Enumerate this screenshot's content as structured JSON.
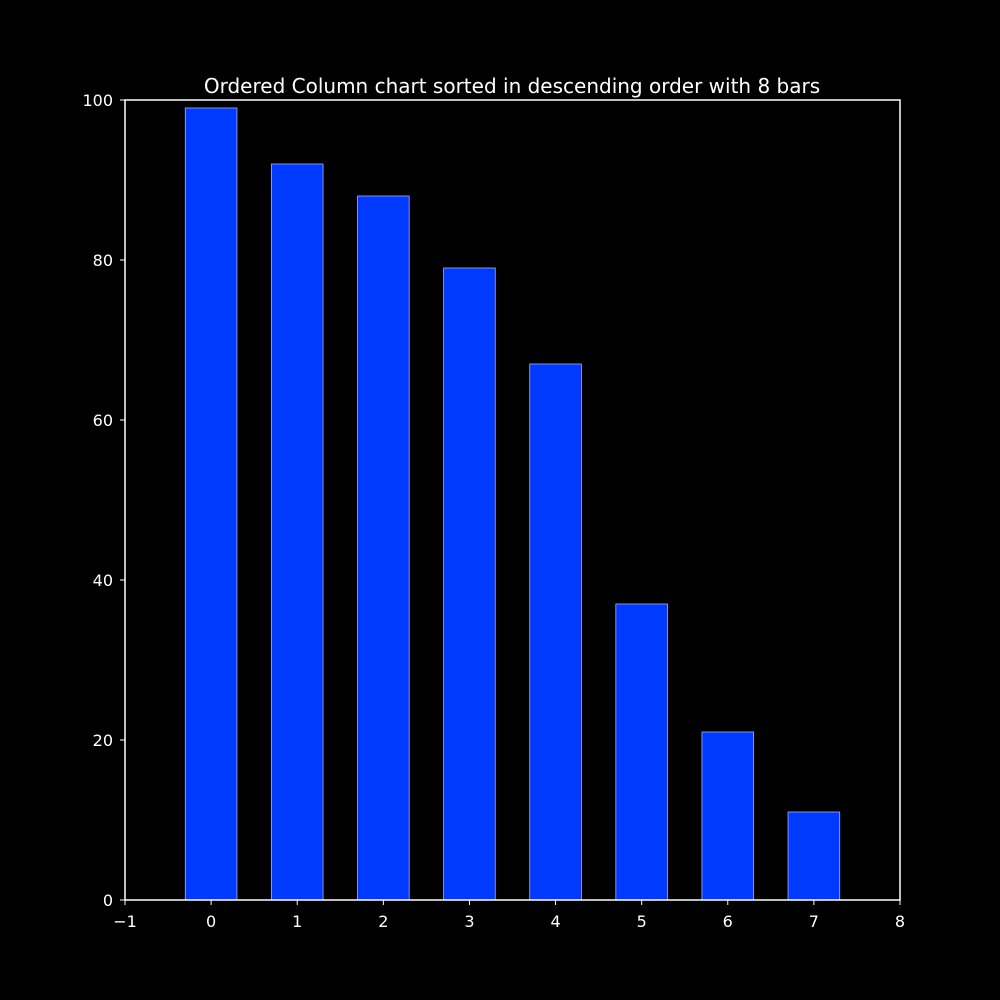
{
  "chart_data": {
    "type": "bar",
    "title": "Ordered Column chart sorted in descending order with 8 bars",
    "xlabel": "",
    "ylabel": "",
    "categories": [
      "0",
      "1",
      "2",
      "3",
      "4",
      "5",
      "6",
      "7"
    ],
    "x": [
      0,
      1,
      2,
      3,
      4,
      5,
      6,
      7
    ],
    "values": [
      99,
      92,
      88,
      79,
      67,
      37,
      21,
      11
    ],
    "bar_width": 0.6,
    "xlim": [
      -1,
      8
    ],
    "ylim": [
      0,
      100
    ],
    "x_ticks": [
      -1,
      0,
      1,
      2,
      3,
      4,
      5,
      6,
      7,
      8
    ],
    "x_tick_labels": [
      "−1",
      "0",
      "1",
      "2",
      "3",
      "4",
      "5",
      "6",
      "7",
      "8"
    ],
    "y_ticks": [
      0,
      20,
      40,
      60,
      80,
      100
    ],
    "y_tick_labels": [
      "0",
      "20",
      "40",
      "60",
      "80",
      "100"
    ],
    "grid": false,
    "legend": "none",
    "colors": {
      "background": "#000000",
      "bar_fill": "#0039ff",
      "bar_edge": "#a0b0ff",
      "axes": "#ffffff",
      "text": "#ffffff"
    }
  }
}
